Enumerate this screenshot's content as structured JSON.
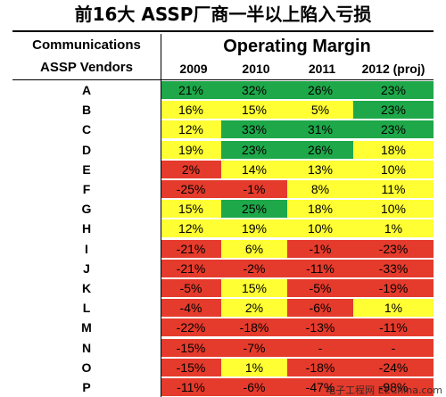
{
  "title": "前16大 ASSP厂商一半以上陷入亏损",
  "watermark": "电子工程网 EEChina.com",
  "colors": {
    "green": "#1ea84a",
    "yellow": "#ffff33",
    "red": "#e53b2c",
    "white": "#ffffff"
  },
  "chart_data": {
    "type": "table",
    "row_header_lines": [
      "Communications",
      "ASSP Vendors"
    ],
    "metric_title": "Operating Margin",
    "years": [
      "2009",
      "2010",
      "2011",
      "2012 (proj)"
    ],
    "rows": [
      {
        "vendor": "A",
        "values": [
          "21%",
          "32%",
          "26%",
          "23%"
        ],
        "fills": [
          "green",
          "green",
          "green",
          "green"
        ]
      },
      {
        "vendor": "B",
        "values": [
          "16%",
          "15%",
          "5%",
          "23%"
        ],
        "fills": [
          "yellow",
          "yellow",
          "yellow",
          "green"
        ]
      },
      {
        "vendor": "C",
        "values": [
          "12%",
          "33%",
          "31%",
          "23%"
        ],
        "fills": [
          "yellow",
          "green",
          "green",
          "green"
        ]
      },
      {
        "vendor": "D",
        "values": [
          "19%",
          "23%",
          "26%",
          "18%"
        ],
        "fills": [
          "yellow",
          "green",
          "green",
          "yellow"
        ]
      },
      {
        "vendor": "E",
        "values": [
          "2%",
          "14%",
          "13%",
          "10%"
        ],
        "fills": [
          "red",
          "yellow",
          "yellow",
          "yellow"
        ]
      },
      {
        "vendor": "F",
        "values": [
          "-25%",
          "-1%",
          "8%",
          "11%"
        ],
        "fills": [
          "red",
          "red",
          "yellow",
          "yellow"
        ]
      },
      {
        "vendor": "G",
        "values": [
          "15%",
          "25%",
          "18%",
          "10%"
        ],
        "fills": [
          "yellow",
          "green",
          "yellow",
          "yellow"
        ]
      },
      {
        "vendor": "H",
        "values": [
          "12%",
          "19%",
          "10%",
          "1%"
        ],
        "fills": [
          "yellow",
          "yellow",
          "yellow",
          "yellow"
        ]
      },
      {
        "vendor": "I",
        "values": [
          "-21%",
          "6%",
          "-1%",
          "-23%"
        ],
        "fills": [
          "red",
          "yellow",
          "red",
          "red"
        ]
      },
      {
        "vendor": "J",
        "values": [
          "-21%",
          "-2%",
          "-11%",
          "-33%"
        ],
        "fills": [
          "red",
          "red",
          "red",
          "red"
        ]
      },
      {
        "vendor": "K",
        "values": [
          "-5%",
          "15%",
          "-5%",
          "-19%"
        ],
        "fills": [
          "red",
          "yellow",
          "red",
          "red"
        ]
      },
      {
        "vendor": "L",
        "values": [
          "-4%",
          "2%",
          "-6%",
          "1%"
        ],
        "fills": [
          "red",
          "yellow",
          "red",
          "yellow"
        ]
      },
      {
        "vendor": "M",
        "values": [
          "-22%",
          "-18%",
          "-13%",
          "-11%"
        ],
        "fills": [
          "red",
          "red",
          "red",
          "red"
        ]
      },
      {
        "vendor": "N",
        "values": [
          "-15%",
          "-7%",
          "-",
          "-"
        ],
        "fills": [
          "red",
          "red",
          "red",
          "red"
        ]
      },
      {
        "vendor": "O",
        "values": [
          "-15%",
          "1%",
          "-18%",
          "-24%"
        ],
        "fills": [
          "red",
          "yellow",
          "red",
          "red"
        ]
      },
      {
        "vendor": "P",
        "values": [
          "-11%",
          "-6%",
          "-47%",
          "-98%"
        ],
        "fills": [
          "red",
          "red",
          "red",
          "red"
        ]
      }
    ]
  }
}
